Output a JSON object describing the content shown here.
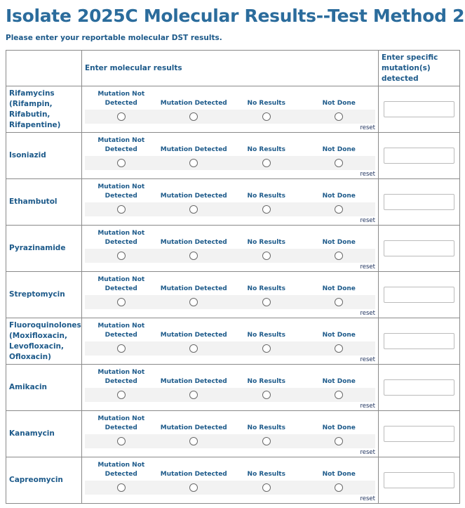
{
  "title": "Isolate 2025C Molecular Results--Test Method 2",
  "subtitle": "Please enter your reportable molecular DST results.",
  "header": {
    "col1": "",
    "col2": "Enter molecular results",
    "col3": "Enter specific mutation(s) detected"
  },
  "options": [
    "Mutation Not Detected",
    "Mutation Detected",
    "No Results",
    "Not Done"
  ],
  "reset_label": "reset",
  "drugs": [
    "Rifamycins (Rifampin, Rifabutin, Rifapentine)",
    "Isoniazid",
    "Ethambutol",
    "Pyrazinamide",
    "Streptomycin",
    "Fluoroquinolones (Moxifloxacin, Levofloxacin, Ofloxacin)",
    "Amikacin",
    "Kanamycin",
    "Capreomycin"
  ]
}
